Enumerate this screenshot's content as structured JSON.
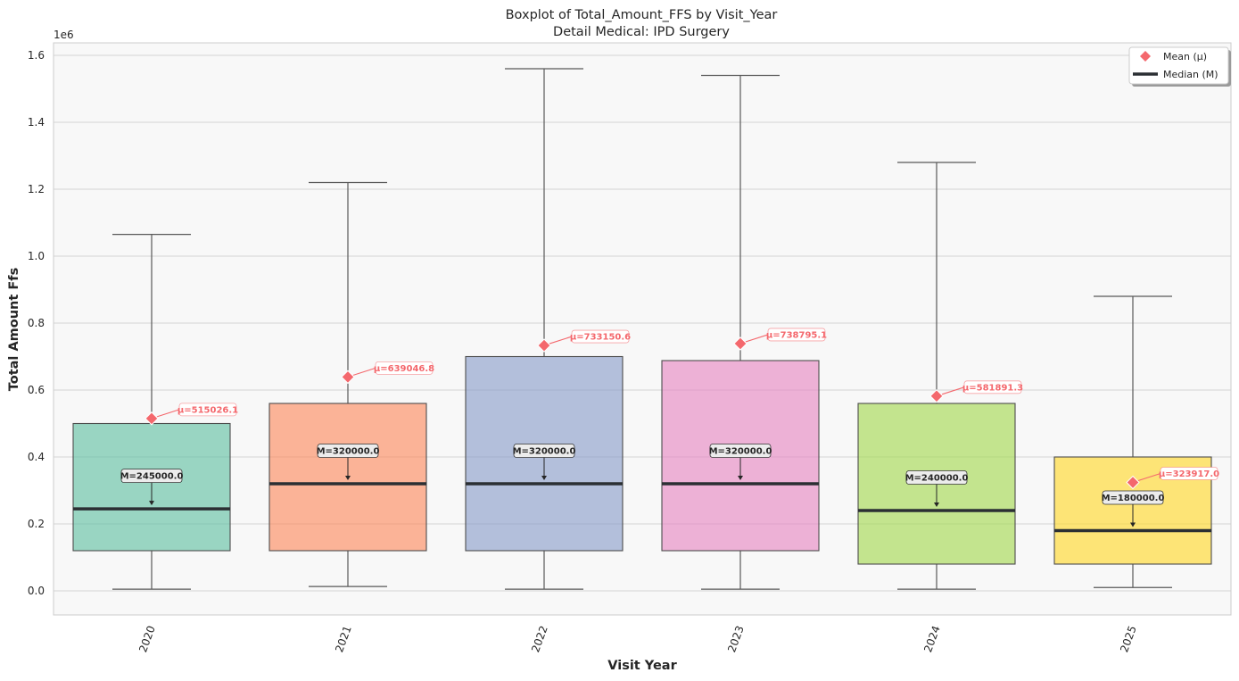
{
  "chart_data": {
    "type": "box",
    "title": "Boxplot of Total_Amount_FFS by Visit_Year",
    "subtitle": "Detail Medical: IPD Surgery",
    "xlabel": "Visit Year",
    "ylabel": "Total Amount Ffs",
    "y_scale_label": "1e6",
    "ylim": [
      -75000,
      1640000
    ],
    "y_ticks": [
      0,
      200000,
      400000,
      600000,
      800000,
      1000000,
      1200000,
      1400000,
      1600000
    ],
    "y_tick_labels": [
      "0.0",
      "0.2",
      "0.4",
      "0.6",
      "0.8",
      "1.0",
      "1.2",
      "1.4",
      "1.6"
    ],
    "grid": true,
    "legend_position": "top-right",
    "legend": [
      {
        "label": "Mean (μ)",
        "marker": "diamond",
        "color": "#f4686d"
      },
      {
        "label": "Median (M)",
        "marker": "line",
        "color": "#2b2f33"
      }
    ],
    "categories": [
      "2020",
      "2021",
      "2022",
      "2023",
      "2024",
      "2025"
    ],
    "boxes": [
      {
        "category": "2020",
        "whislo": 5000,
        "q1": 120000,
        "median": 245000,
        "q3": 500000,
        "whishi": 1065000,
        "mean": 515026.1,
        "color": "#66c2a5",
        "median_label": "M=245000.0",
        "mean_label": "μ=515026.1"
      },
      {
        "category": "2021",
        "whislo": 13000,
        "q1": 120000,
        "median": 320000,
        "q3": 560000,
        "whishi": 1220000,
        "mean": 639046.8,
        "color": "#fc8d62",
        "median_label": "M=320000.0",
        "mean_label": "μ=639046.8"
      },
      {
        "category": "2022",
        "whislo": 5000,
        "q1": 120000,
        "median": 320000,
        "q3": 700000,
        "whishi": 1560000,
        "mean": 733150.6,
        "color": "#8da0cb",
        "median_label": "M=320000.0",
        "mean_label": "μ=733150.6"
      },
      {
        "category": "2023",
        "whislo": 5000,
        "q1": 120000,
        "median": 320000,
        "q3": 688000,
        "whishi": 1540000,
        "mean": 738795.1,
        "color": "#e78ac3",
        "median_label": "M=320000.0",
        "mean_label": "μ=738795.1"
      },
      {
        "category": "2024",
        "whislo": 5000,
        "q1": 80000,
        "median": 240000,
        "q3": 560000,
        "whishi": 1280000,
        "mean": 581891.3,
        "color": "#a6d854",
        "median_label": "M=240000.0",
        "mean_label": "μ=581891.3"
      },
      {
        "category": "2025",
        "whislo": 10000,
        "q1": 80000,
        "median": 180000,
        "q3": 400000,
        "whishi": 880000,
        "mean": 323917.0,
        "color": "#ffd92f",
        "median_label": "M=180000.0",
        "mean_label": "μ=323917.0"
      }
    ]
  }
}
